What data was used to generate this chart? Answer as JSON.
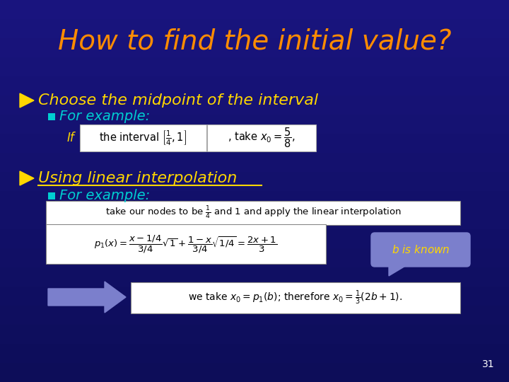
{
  "title": "How to find the initial value?",
  "title_color": "#FF8C00",
  "bg_color": "#1a1a8c",
  "bullet1_text": "Choose the midpoint of the interval",
  "bullet1_color": "#FFD700",
  "bullet2_text": "Using linear interpolation",
  "bullet2_color": "#FFD700",
  "sub_bullet_color": "#00CED1",
  "sub_bullet_text1": "For example:",
  "sub_bullet_text2": "For example:",
  "if_color": "#FFD700",
  "page_number": "31",
  "box_bg": "#ffffff",
  "box_text_color": "#000000",
  "callout_bg": "#7B7FCC",
  "callout_text_color": "#FFD700",
  "arrow_color": "#7B7FCC",
  "title_fontsize": 28,
  "bullet_fontsize": 16,
  "sub_bullet_fontsize": 14,
  "body_fontsize": 10
}
